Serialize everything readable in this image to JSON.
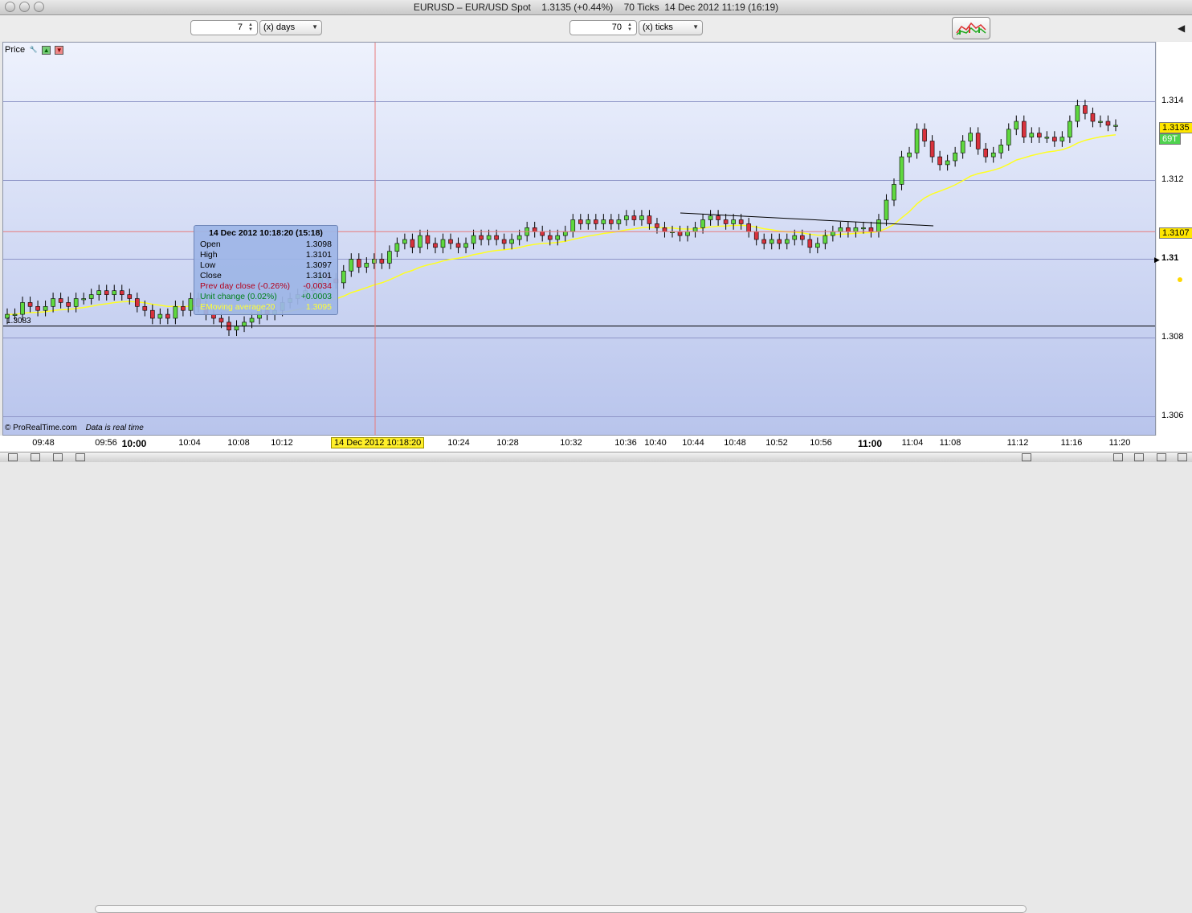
{
  "window": {
    "title": "EURUSD – EUR/USD Spot    1.3135 (+0.44%)    70 Ticks  14 Dec 2012 11:19 (16:19)"
  },
  "toolbar": {
    "period_value": "7",
    "period_unit": "(x) days",
    "ticks_value": "70",
    "ticks_unit": "(x) ticks"
  },
  "panel": {
    "label": "Price"
  },
  "tooltip": {
    "title": "14 Dec 2012 10:18:20 (15:18)",
    "rows": [
      {
        "key": "Open",
        "value": "1.3098",
        "color": "#000000"
      },
      {
        "key": "High",
        "value": "1.3101",
        "color": "#000000"
      },
      {
        "key": "Low",
        "value": "1.3097",
        "color": "#000000"
      },
      {
        "key": "Close",
        "value": "1.3101",
        "color": "#000000"
      },
      {
        "key": "Prev day close (-0.26%)",
        "value": "-0.0034",
        "color": "#b3001b"
      },
      {
        "key": "Unit change (0.02%)",
        "value": "+0.0003",
        "color": "#00801a"
      },
      {
        "key": "EMoving average20",
        "value": "1.3095",
        "color": "#ffff33"
      }
    ]
  },
  "y_axis": {
    "labels": [
      "1.314",
      "1.312",
      "1.31",
      "1.308",
      "1.306"
    ]
  },
  "price_tags": {
    "last": "1.3135",
    "ticks": "69T",
    "crosshair": "1.3107",
    "last_color": "#ffe600",
    "ticks_color": "#4fd24f",
    "crosshair_color": "#ffe600"
  },
  "prev_close_label": "1.3083",
  "x_axis": {
    "crosshair_label": "14 Dec 2012 10:18:20",
    "labels": [
      "09:48",
      "09:56",
      "10:00",
      "10:04",
      "10:08",
      "10:12",
      "10:24",
      "10:28",
      "10:32",
      "10:36",
      "10:40",
      "10:44",
      "10:48",
      "10:52",
      "10:56",
      "11:00",
      "11:04",
      "11:08",
      "11:12",
      "11:16",
      "11:20"
    ]
  },
  "footer": {
    "copyright": "© ProRealTime.com",
    "realtime": "Data is real time"
  },
  "colors": {
    "up_candle": "#5fd83f",
    "down_candle": "#d8323c",
    "ema_line": "#ffff22",
    "crosshair": "#e87b7b",
    "grid": "#8f96c8"
  },
  "chart_data": {
    "type": "candlestick",
    "series_name": "EMoving average20",
    "ylim": [
      1.3055,
      1.3155
    ],
    "prev_close": 1.3083,
    "crosshair_price": 1.3107,
    "open": [
      1.3085,
      1.3086,
      1.3086,
      1.3089,
      1.3088,
      1.3087,
      1.3088,
      1.309,
      1.3089,
      1.3088,
      1.309,
      1.309,
      1.3091,
      1.3092,
      1.3091,
      1.3092,
      1.3091,
      1.309,
      1.3088,
      1.3087,
      1.3085,
      1.3086,
      1.3085,
      1.3088,
      1.3087,
      1.309,
      1.3088,
      1.3086,
      1.3085,
      1.3084,
      1.3082,
      1.3083,
      1.3084,
      1.3085,
      1.3087,
      1.3086,
      1.3087,
      1.3089,
      1.309,
      1.3091,
      1.3092,
      1.3093,
      1.3096,
      1.3095,
      1.3094,
      1.3097,
      1.31,
      1.3098,
      1.3099,
      1.31,
      1.3099,
      1.3102,
      1.3104,
      1.3105,
      1.3103,
      1.3106,
      1.3104,
      1.3103,
      1.3105,
      1.3104,
      1.3103,
      1.3104,
      1.3106,
      1.3105,
      1.3106,
      1.3105,
      1.3104,
      1.3105,
      1.3106,
      1.3108,
      1.3107,
      1.3106,
      1.3105,
      1.3106,
      1.3107,
      1.311,
      1.3109,
      1.311,
      1.3109,
      1.311,
      1.3109,
      1.311,
      1.3111,
      1.311,
      1.3111,
      1.3109,
      1.3108,
      1.3107,
      1.3107,
      1.3106,
      1.3107,
      1.3108,
      1.311,
      1.3111,
      1.311,
      1.3109,
      1.311,
      1.3109,
      1.3107,
      1.3105,
      1.3104,
      1.3105,
      1.3104,
      1.3105,
      1.3106,
      1.3105,
      1.3103,
      1.3104,
      1.3106,
      1.3107,
      1.3108,
      1.3107,
      1.3108,
      1.3108,
      1.3107,
      1.311,
      1.3115,
      1.3119,
      1.3126,
      1.3127,
      1.3133,
      1.313,
      1.3126,
      1.3124,
      1.3125,
      1.3127,
      1.313,
      1.3132,
      1.3128,
      1.3126,
      1.3127,
      1.3129,
      1.3133,
      1.3135,
      1.3131,
      1.3132,
      1.3131,
      1.3131,
      1.313,
      1.3131,
      1.3135,
      1.3139,
      1.3137,
      1.3135,
      1.3135,
      1.3134
    ],
    "close": [
      1.3086,
      1.3086,
      1.3089,
      1.3088,
      1.3087,
      1.3088,
      1.309,
      1.3089,
      1.3088,
      1.309,
      1.309,
      1.3091,
      1.3092,
      1.3091,
      1.3092,
      1.3091,
      1.309,
      1.3088,
      1.3087,
      1.3085,
      1.3086,
      1.3085,
      1.3088,
      1.3087,
      1.309,
      1.3088,
      1.3086,
      1.3085,
      1.3084,
      1.3082,
      1.3083,
      1.3084,
      1.3085,
      1.3087,
      1.3086,
      1.3087,
      1.3089,
      1.309,
      1.3091,
      1.3092,
      1.3093,
      1.3096,
      1.3095,
      1.3094,
      1.3097,
      1.31,
      1.3098,
      1.3099,
      1.31,
      1.3099,
      1.3102,
      1.3104,
      1.3105,
      1.3103,
      1.3106,
      1.3104,
      1.3103,
      1.3105,
      1.3104,
      1.3103,
      1.3104,
      1.3106,
      1.3105,
      1.3106,
      1.3105,
      1.3104,
      1.3105,
      1.3106,
      1.3108,
      1.3107,
      1.3106,
      1.3105,
      1.3106,
      1.3107,
      1.311,
      1.3109,
      1.311,
      1.3109,
      1.311,
      1.3109,
      1.311,
      1.3111,
      1.311,
      1.3111,
      1.3109,
      1.3108,
      1.3107,
      1.3107,
      1.3106,
      1.3107,
      1.3108,
      1.311,
      1.3111,
      1.311,
      1.3109,
      1.311,
      1.3109,
      1.3107,
      1.3105,
      1.3104,
      1.3105,
      1.3104,
      1.3105,
      1.3106,
      1.3105,
      1.3103,
      1.3104,
      1.3106,
      1.3107,
      1.3108,
      1.3107,
      1.3108,
      1.3108,
      1.3107,
      1.311,
      1.3115,
      1.3119,
      1.3126,
      1.3127,
      1.3133,
      1.313,
      1.3126,
      1.3124,
      1.3125,
      1.3127,
      1.313,
      1.3132,
      1.3128,
      1.3126,
      1.3127,
      1.3129,
      1.3133,
      1.3135,
      1.3131,
      1.3132,
      1.3131,
      1.3131,
      1.313,
      1.3131,
      1.3135,
      1.3139,
      1.3137,
      1.3135,
      1.3135,
      1.3134,
      1.3134
    ]
  }
}
